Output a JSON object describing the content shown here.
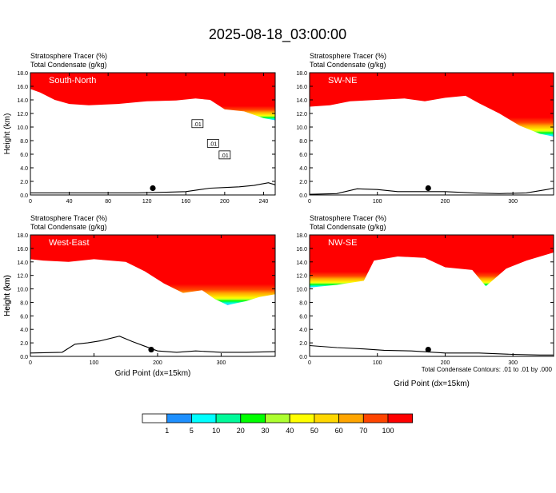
{
  "title": "2025-08-18_03:00:00",
  "colors": {
    "levels": [
      "#ffffff",
      "#1e90ff",
      "#00ffff",
      "#00fa9a",
      "#00ff00",
      "#adff2f",
      "#ffff00",
      "#ffd700",
      "#ffa500",
      "#ff4500",
      "#ff0000"
    ],
    "topography": "#000000",
    "contour": "#000000"
  },
  "colorbar": {
    "labels": [
      "1",
      "5",
      "10",
      "20",
      "30",
      "40",
      "50",
      "60",
      "70",
      "100"
    ]
  },
  "footnote": "Total Condensate Contours: .01 to .01 by .000",
  "chart_data": [
    {
      "type": "heatmap",
      "panel_label": "South-North",
      "header_line1": "Stratosphere Tracer   (%)",
      "header_line2": "Total Condensate   (g/kg)",
      "ylabel": "Height (km)",
      "xlabel": "",
      "xlim": [
        0,
        252
      ],
      "ylim": [
        0,
        18
      ],
      "xticks": [
        0,
        40,
        80,
        120,
        160,
        200,
        240
      ],
      "yticks": [
        "0.0",
        "2.0",
        "4.0",
        "6.0",
        "8.0",
        "10.0",
        "12.0",
        "14.0",
        "16.0",
        "18.0"
      ],
      "marker_x": 126,
      "contour_labels": [
        {
          "text": ".01",
          "x": 172,
          "y": 10.5
        },
        {
          "text": ".01",
          "x": 188,
          "y": 7.6
        },
        {
          "text": ".01",
          "x": 200,
          "y": 5.9
        }
      ],
      "tracer_bottom_km": [
        [
          0,
          15.6
        ],
        [
          10,
          15.1
        ],
        [
          25,
          14.0
        ],
        [
          40,
          13.4
        ],
        [
          60,
          13.2
        ],
        [
          90,
          13.4
        ],
        [
          120,
          13.8
        ],
        [
          150,
          13.9
        ],
        [
          170,
          14.2
        ],
        [
          185,
          14.0
        ],
        [
          200,
          12.6
        ],
        [
          220,
          12.3
        ],
        [
          240,
          11.3
        ],
        [
          252,
          11.0
        ]
      ],
      "topography_km": [
        [
          0,
          0.3
        ],
        [
          60,
          0.3
        ],
        [
          110,
          0.3
        ],
        [
          140,
          0.4
        ],
        [
          160,
          0.5
        ],
        [
          175,
          0.8
        ],
        [
          185,
          1.0
        ],
        [
          200,
          1.1
        ],
        [
          215,
          1.2
        ],
        [
          230,
          1.4
        ],
        [
          245,
          1.8
        ],
        [
          252,
          1.5
        ]
      ]
    },
    {
      "type": "heatmap",
      "panel_label": "SW-NE",
      "header_line1": "Stratosphere Tracer   (%)",
      "header_line2": "Total Condensate   (g/kg)",
      "ylabel": "",
      "xlabel": "",
      "xlim": [
        0,
        360
      ],
      "ylim": [
        0,
        18
      ],
      "xticks": [
        0,
        100,
        200,
        300
      ],
      "yticks": [
        "0.0",
        "2.0",
        "4.0",
        "6.0",
        "8.0",
        "10.0",
        "12.0",
        "14.0",
        "16.0",
        "18.0"
      ],
      "marker_x": 175,
      "contour_labels": [],
      "tracer_bottom_km": [
        [
          0,
          13.0
        ],
        [
          30,
          13.2
        ],
        [
          60,
          13.8
        ],
        [
          100,
          14.0
        ],
        [
          140,
          14.2
        ],
        [
          170,
          13.8
        ],
        [
          200,
          14.3
        ],
        [
          230,
          14.6
        ],
        [
          250,
          13.5
        ],
        [
          280,
          12.0
        ],
        [
          310,
          10.2
        ],
        [
          340,
          9.0
        ],
        [
          360,
          8.6
        ]
      ],
      "topography_km": [
        [
          0,
          0.1
        ],
        [
          40,
          0.2
        ],
        [
          70,
          0.9
        ],
        [
          100,
          0.8
        ],
        [
          130,
          0.5
        ],
        [
          160,
          0.5
        ],
        [
          200,
          0.5
        ],
        [
          240,
          0.3
        ],
        [
          280,
          0.2
        ],
        [
          320,
          0.3
        ],
        [
          350,
          0.8
        ],
        [
          360,
          1.0
        ]
      ]
    },
    {
      "type": "heatmap",
      "panel_label": "West-East",
      "header_line1": "Stratosphere Tracer   (%)",
      "header_line2": "Total Condensate   (g/kg)",
      "ylabel": "Height (km)",
      "xlabel": "Grid Point (dx=15km)",
      "xlim": [
        0,
        385
      ],
      "ylim": [
        0,
        18
      ],
      "xticks": [
        0,
        100,
        200,
        300
      ],
      "yticks": [
        "0.0",
        "2.0",
        "4.0",
        "6.0",
        "8.0",
        "10.0",
        "12.0",
        "14.0",
        "16.0",
        "18.0"
      ],
      "marker_x": 190,
      "contour_labels": [],
      "tracer_bottom_km": [
        [
          0,
          14.4
        ],
        [
          20,
          14.2
        ],
        [
          60,
          14.0
        ],
        [
          100,
          14.4
        ],
        [
          150,
          14.0
        ],
        [
          180,
          12.6
        ],
        [
          210,
          10.8
        ],
        [
          240,
          9.4
        ],
        [
          270,
          9.8
        ],
        [
          290,
          8.5
        ],
        [
          310,
          7.6
        ],
        [
          340,
          8.2
        ],
        [
          360,
          8.8
        ],
        [
          385,
          9.2
        ]
      ],
      "topography_km": [
        [
          0,
          0.5
        ],
        [
          50,
          0.6
        ],
        [
          70,
          1.8
        ],
        [
          90,
          2.0
        ],
        [
          110,
          2.3
        ],
        [
          140,
          3.0
        ],
        [
          160,
          2.2
        ],
        [
          180,
          1.5
        ],
        [
          200,
          0.8
        ],
        [
          230,
          0.6
        ],
        [
          260,
          0.8
        ],
        [
          300,
          0.6
        ],
        [
          340,
          0.6
        ],
        [
          385,
          0.7
        ]
      ]
    },
    {
      "type": "heatmap",
      "panel_label": "NW-SE",
      "header_line1": "Stratosphere Tracer   (%)",
      "header_line2": "Total Condensate   (g/kg)",
      "ylabel": "Height (km)",
      "xlabel": "Grid Point (dx=15km)",
      "xlim": [
        0,
        360
      ],
      "ylim": [
        0,
        18
      ],
      "xticks": [
        0,
        100,
        200,
        300
      ],
      "yticks": [
        "0.0",
        "2.0",
        "4.0",
        "6.0",
        "8.0",
        "10.0",
        "12.0",
        "14.0",
        "16.0",
        "18.0"
      ],
      "marker_x": 175,
      "contour_labels": [],
      "tracer_bottom_km": [
        [
          0,
          10.2
        ],
        [
          40,
          10.6
        ],
        [
          80,
          11.2
        ],
        [
          95,
          14.2
        ],
        [
          130,
          14.8
        ],
        [
          170,
          14.6
        ],
        [
          200,
          13.2
        ],
        [
          240,
          12.8
        ],
        [
          260,
          10.4
        ],
        [
          290,
          13.0
        ],
        [
          320,
          14.2
        ],
        [
          360,
          15.4
        ]
      ],
      "topography_km": [
        [
          0,
          1.6
        ],
        [
          40,
          1.3
        ],
        [
          80,
          1.1
        ],
        [
          110,
          0.9
        ],
        [
          150,
          0.8
        ],
        [
          200,
          0.5
        ],
        [
          250,
          0.5
        ],
        [
          300,
          0.3
        ],
        [
          340,
          0.2
        ],
        [
          360,
          0.2
        ]
      ]
    }
  ]
}
